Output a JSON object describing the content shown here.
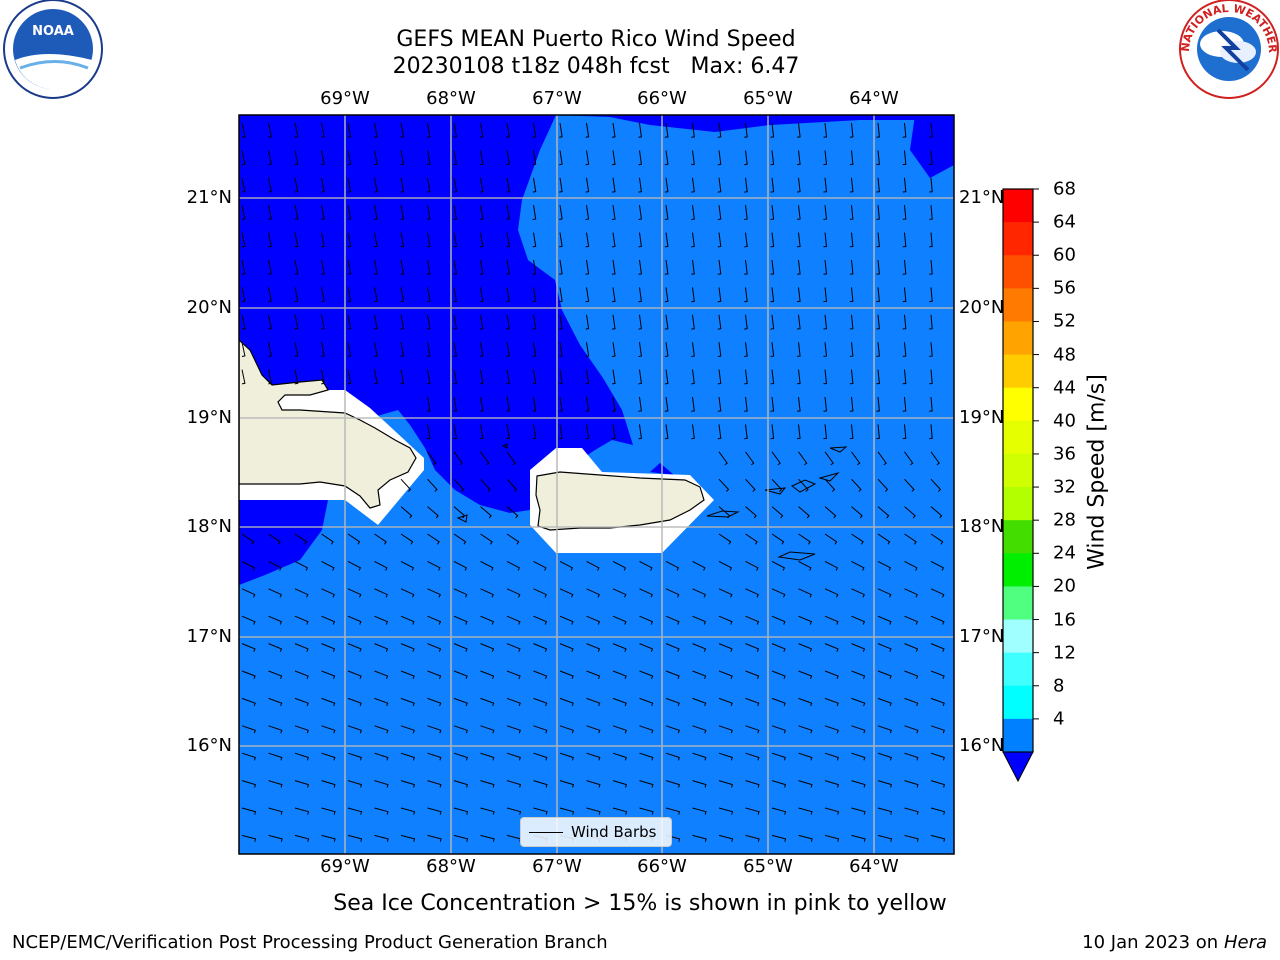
{
  "title_line1": "GEFS MEAN Puerto Rico Wind Speed",
  "title_line2": "20230108 t18z 048h fcst   Max: 6.47",
  "logos": {
    "noaa_text": "NOAA",
    "noaa_ring_text": "NATIONAL OCEANIC AND ATMOSPHERIC ADMINISTRATION",
    "noaa_ring_bottom": "U.S. DEPARTMENT OF COMMERCE",
    "nws_ring_text": "NATIONAL WEATHER SERVICE"
  },
  "map": {
    "lon_labels": [
      "69°W",
      "68°W",
      "67°W",
      "66°W",
      "65°W",
      "64°W"
    ],
    "lat_labels": [
      "21°N",
      "20°N",
      "19°N",
      "18°N",
      "17°N",
      "16°N"
    ],
    "ocean_color": "#0f80ff",
    "low_wind_color": "#0000ff",
    "land_color": "#efefdc"
  },
  "legend": {
    "label": "Wind Barbs"
  },
  "colorbar": {
    "label": "Wind Speed [m/s]",
    "ticks": [
      "68",
      "64",
      "60",
      "56",
      "52",
      "48",
      "44",
      "40",
      "36",
      "32",
      "28",
      "24",
      "20",
      "16",
      "12",
      "8",
      "4"
    ],
    "colors": [
      "#ff0000",
      "#ff2600",
      "#ff5000",
      "#ff7a00",
      "#ffa300",
      "#ffcc00",
      "#ffff00",
      "#e6ff00",
      "#cfff00",
      "#b3ff00",
      "#44dd00",
      "#00ee00",
      "#50ff80",
      "#a0ffff",
      "#40ffff",
      "#00ffff",
      "#0080ff"
    ],
    "extend_color": "#0000ff"
  },
  "footnote": "Sea Ice Concentration > 15% is shown in pink to yellow",
  "footer_left": "NCEP/EMC/Verification Post Processing Product Generation Branch",
  "footer_right_prefix": "10 Jan 2023 on ",
  "footer_right_host": "Hera"
}
